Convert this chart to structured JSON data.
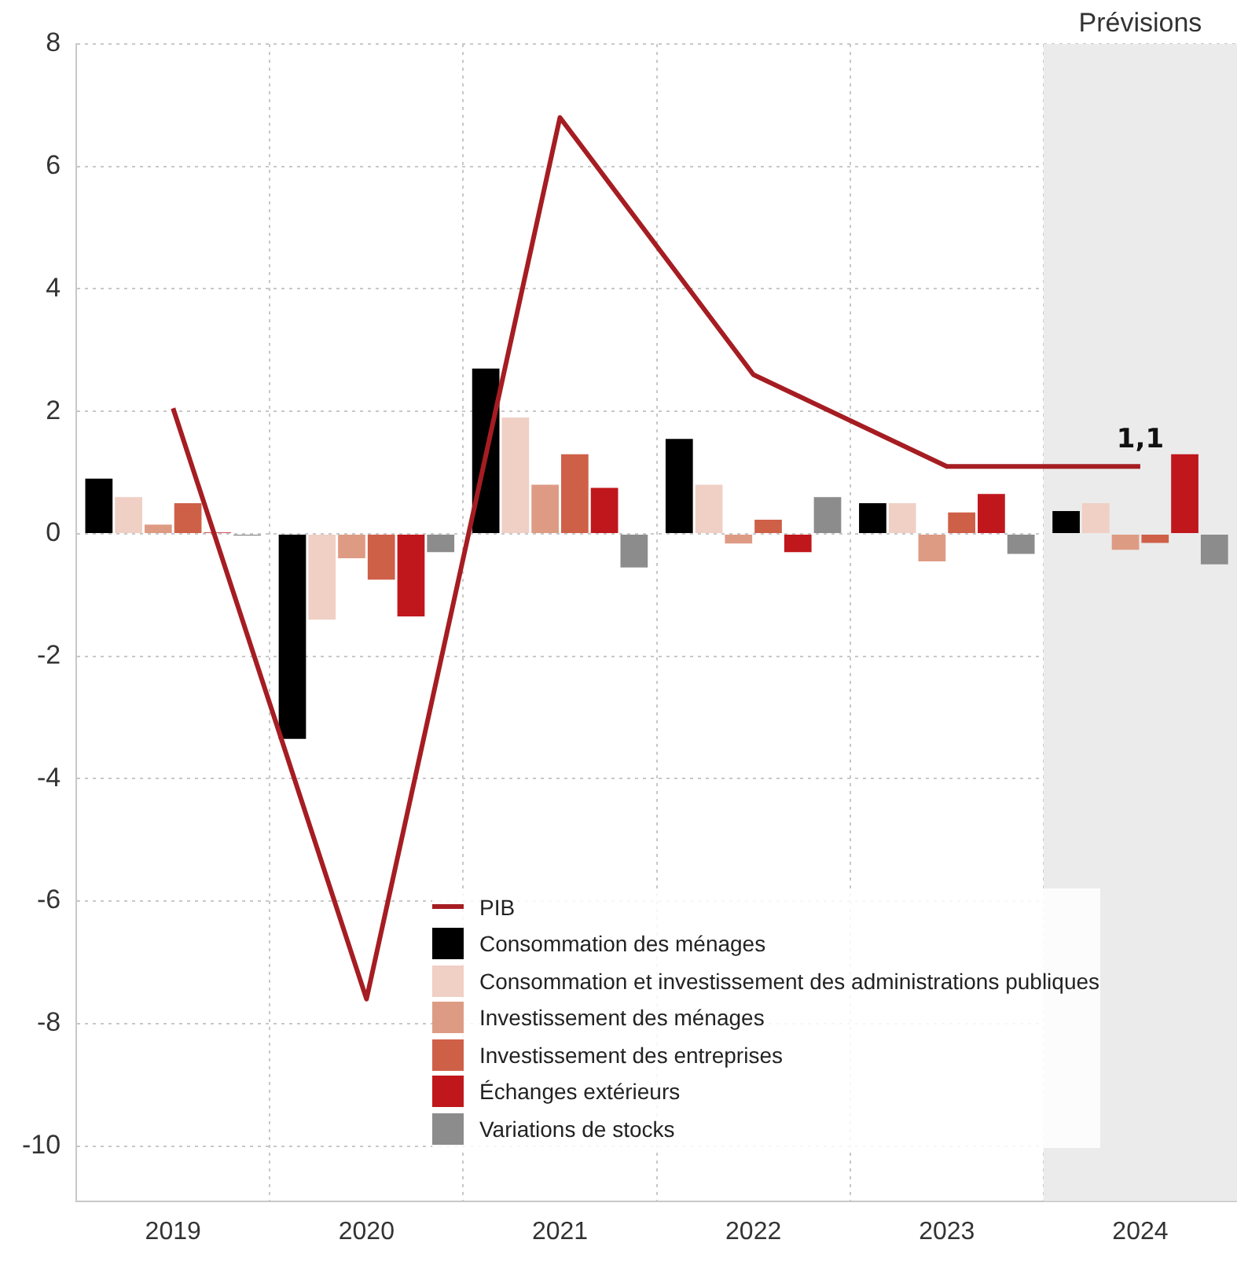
{
  "chart_data": {
    "type": "bar",
    "categories": [
      "2019",
      "2020",
      "2021",
      "2022",
      "2023",
      "2024"
    ],
    "series": [
      {
        "name": "PIB",
        "type": "line",
        "color": "#a51d22",
        "values": [
          2.05,
          -7.6,
          6.8,
          2.6,
          1.1,
          1.1
        ],
        "value_labels": [
          null,
          null,
          null,
          null,
          null,
          "1,1"
        ]
      },
      {
        "name": "Consommation des ménages",
        "color": "#000000",
        "values": [
          0.9,
          -3.35,
          2.7,
          1.55,
          0.5,
          0.37
        ]
      },
      {
        "name": "Consommation et investissement des administrations publiques",
        "color": "#f0cfc4",
        "values": [
          0.6,
          -1.4,
          1.9,
          0.8,
          0.5,
          0.5
        ]
      },
      {
        "name": "Investissement des ménages",
        "color": "#de9b84",
        "values": [
          0.15,
          -0.4,
          0.8,
          -0.16,
          -0.45,
          -0.26
        ]
      },
      {
        "name": "Investissement des entreprises",
        "color": "#cf6048",
        "values": [
          0.5,
          -0.75,
          1.3,
          0.23,
          0.35,
          -0.15
        ]
      },
      {
        "name": "Échanges extérieurs",
        "color": "#c0171c",
        "values": [
          0.02,
          -1.35,
          0.75,
          -0.3,
          0.65,
          1.3
        ]
      },
      {
        "name": "Variations de stocks",
        "color": "#8c8c8c",
        "values": [
          -0.03,
          -0.3,
          -0.55,
          0.6,
          -0.33,
          -0.5
        ]
      }
    ],
    "ylim": [
      -10.9,
      8
    ],
    "yticks": [
      -10,
      -8,
      -6,
      -4,
      -2,
      0,
      2,
      4,
      6,
      8
    ],
    "grid": true,
    "legend": "bottom",
    "bands": [
      {
        "axis": "x",
        "from": "2024",
        "to": "2024",
        "label": "Prévisions",
        "color": "#ebebeb"
      }
    ]
  }
}
